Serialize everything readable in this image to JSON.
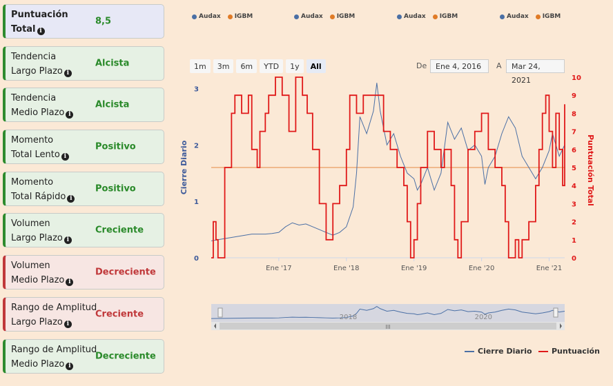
{
  "cards": [
    {
      "line1": "Puntuación",
      "line2": "Total",
      "value": "8,5",
      "tone": "neutral",
      "bold": true
    },
    {
      "line1": "Tendencia",
      "line2": "Largo Plazo",
      "value": "Alcista",
      "tone": "positive"
    },
    {
      "line1": "Tendencia",
      "line2": "Medio Plazo",
      "value": "Alcista",
      "tone": "positive"
    },
    {
      "line1": "Momento",
      "line2": "Total Lento",
      "value": "Positivo",
      "tone": "positive"
    },
    {
      "line1": "Momento",
      "line2": "Total Rápido",
      "value": "Positivo",
      "tone": "positive"
    },
    {
      "line1": "Volumen",
      "line2": "Largo Plazo",
      "value": "Creciente",
      "tone": "positive"
    },
    {
      "line1": "Volumen",
      "line2": "Medio Plazo",
      "value": "Decreciente",
      "tone": "negative"
    },
    {
      "line1": "Rango de Amplitud",
      "line2": "Largo Plazo",
      "value": "Creciente",
      "tone": "negative"
    },
    {
      "line1": "Rango de Amplitud",
      "line2": "Medio Plazo",
      "value": "Decreciente",
      "tone": "positive"
    }
  ],
  "info_glyph": "i",
  "top_legend": {
    "a": "Audax",
    "b": "IGBM",
    "color_a": "#4a6fa5",
    "color_b": "#e07b27"
  },
  "range_selector": {
    "buttons": [
      "1m",
      "3m",
      "6m",
      "YTD",
      "1y",
      "All"
    ],
    "selected": "All"
  },
  "date_range": {
    "from_label": "De",
    "from": "Ene 4, 2016",
    "to_label": "A",
    "to": "Mar 24, 2021"
  },
  "navigator": {
    "labels": [
      "2018",
      "2020"
    ],
    "scroll_glyph": "III"
  },
  "chart_data": {
    "type": "line",
    "x_tick_labels": [
      "Ene '17",
      "Ene '18",
      "Ene '19",
      "Ene '20",
      "Ene '21"
    ],
    "y_left": {
      "label": "Cierre Diario",
      "ticks": [
        0,
        1,
        2,
        3
      ],
      "range": [
        0,
        3.2
      ]
    },
    "y_right": {
      "label": "Puntuación Total",
      "ticks": [
        0,
        1,
        2,
        3,
        4,
        5,
        6,
        7,
        8,
        9,
        10
      ],
      "range": [
        0,
        10
      ]
    },
    "reference_line": {
      "value": 1.6,
      "axis": "left",
      "color": "#f0b98c"
    },
    "series": [
      {
        "name": "Cierre Diario",
        "axis": "left",
        "color": "#4a6fa5",
        "points": [
          [
            2016.0,
            0.3
          ],
          [
            2016.1,
            0.32
          ],
          [
            2016.2,
            0.34
          ],
          [
            2016.3,
            0.36
          ],
          [
            2016.4,
            0.38
          ],
          [
            2016.5,
            0.4
          ],
          [
            2016.6,
            0.42
          ],
          [
            2016.7,
            0.42
          ],
          [
            2016.8,
            0.42
          ],
          [
            2016.9,
            0.43
          ],
          [
            2017.0,
            0.45
          ],
          [
            2017.1,
            0.55
          ],
          [
            2017.2,
            0.62
          ],
          [
            2017.3,
            0.58
          ],
          [
            2017.4,
            0.6
          ],
          [
            2017.5,
            0.55
          ],
          [
            2017.6,
            0.5
          ],
          [
            2017.7,
            0.45
          ],
          [
            2017.8,
            0.4
          ],
          [
            2017.9,
            0.45
          ],
          [
            2018.0,
            0.55
          ],
          [
            2018.1,
            0.9
          ],
          [
            2018.15,
            1.5
          ],
          [
            2018.2,
            2.5
          ],
          [
            2018.3,
            2.2
          ],
          [
            2018.4,
            2.6
          ],
          [
            2018.45,
            3.1
          ],
          [
            2018.5,
            2.6
          ],
          [
            2018.6,
            2.0
          ],
          [
            2018.7,
            2.2
          ],
          [
            2018.8,
            1.8
          ],
          [
            2018.9,
            1.5
          ],
          [
            2019.0,
            1.4
          ],
          [
            2019.05,
            1.2
          ],
          [
            2019.1,
            1.3
          ],
          [
            2019.2,
            1.6
          ],
          [
            2019.3,
            1.2
          ],
          [
            2019.4,
            1.5
          ],
          [
            2019.5,
            2.4
          ],
          [
            2019.6,
            2.1
          ],
          [
            2019.7,
            2.3
          ],
          [
            2019.8,
            1.9
          ],
          [
            2019.9,
            2.0
          ],
          [
            2020.0,
            1.8
          ],
          [
            2020.05,
            1.3
          ],
          [
            2020.1,
            1.6
          ],
          [
            2020.2,
            1.8
          ],
          [
            2020.3,
            2.2
          ],
          [
            2020.4,
            2.5
          ],
          [
            2020.5,
            2.3
          ],
          [
            2020.6,
            1.8
          ],
          [
            2020.7,
            1.6
          ],
          [
            2020.8,
            1.4
          ],
          [
            2020.9,
            1.6
          ],
          [
            2021.0,
            1.9
          ],
          [
            2021.05,
            2.2
          ],
          [
            2021.1,
            2.0
          ],
          [
            2021.15,
            1.8
          ],
          [
            2021.23,
            2.0
          ]
        ]
      },
      {
        "name": "Puntuación",
        "axis": "right",
        "color": "#e01818",
        "points": [
          [
            2016.0,
            0
          ],
          [
            2016.03,
            2
          ],
          [
            2016.07,
            1
          ],
          [
            2016.1,
            0
          ],
          [
            2016.2,
            5
          ],
          [
            2016.3,
            8
          ],
          [
            2016.35,
            9
          ],
          [
            2016.45,
            8
          ],
          [
            2016.55,
            9
          ],
          [
            2016.6,
            6
          ],
          [
            2016.68,
            5
          ],
          [
            2016.72,
            7
          ],
          [
            2016.8,
            8
          ],
          [
            2016.85,
            9
          ],
          [
            2016.95,
            10
          ],
          [
            2017.05,
            9
          ],
          [
            2017.15,
            7
          ],
          [
            2017.25,
            10
          ],
          [
            2017.35,
            9
          ],
          [
            2017.42,
            8
          ],
          [
            2017.5,
            6
          ],
          [
            2017.6,
            3
          ],
          [
            2017.7,
            1
          ],
          [
            2017.8,
            3
          ],
          [
            2017.9,
            4
          ],
          [
            2018.0,
            6
          ],
          [
            2018.05,
            9
          ],
          [
            2018.15,
            8
          ],
          [
            2018.25,
            9
          ],
          [
            2018.5,
            9
          ],
          [
            2018.55,
            7
          ],
          [
            2018.65,
            6
          ],
          [
            2018.75,
            5
          ],
          [
            2018.85,
            4
          ],
          [
            2018.9,
            2
          ],
          [
            2018.95,
            0
          ],
          [
            2019.0,
            1
          ],
          [
            2019.05,
            3
          ],
          [
            2019.1,
            5
          ],
          [
            2019.2,
            7
          ],
          [
            2019.3,
            6
          ],
          [
            2019.4,
            5
          ],
          [
            2019.45,
            6
          ],
          [
            2019.55,
            4
          ],
          [
            2019.6,
            1
          ],
          [
            2019.65,
            0
          ],
          [
            2019.7,
            2
          ],
          [
            2019.8,
            6
          ],
          [
            2019.9,
            7
          ],
          [
            2020.0,
            8
          ],
          [
            2020.1,
            6
          ],
          [
            2020.2,
            5
          ],
          [
            2020.3,
            4
          ],
          [
            2020.35,
            2
          ],
          [
            2020.4,
            0
          ],
          [
            2020.5,
            1
          ],
          [
            2020.55,
            0
          ],
          [
            2020.6,
            1
          ],
          [
            2020.7,
            2
          ],
          [
            2020.8,
            4
          ],
          [
            2020.85,
            6
          ],
          [
            2020.9,
            8
          ],
          [
            2020.95,
            9
          ],
          [
            2021.0,
            7
          ],
          [
            2021.05,
            5
          ],
          [
            2021.1,
            8
          ],
          [
            2021.15,
            6
          ],
          [
            2021.2,
            4
          ],
          [
            2021.23,
            8.5
          ]
        ]
      }
    ]
  },
  "bottom_legend": {
    "series_a": "Cierre Diario",
    "series_b": "Puntuación"
  }
}
